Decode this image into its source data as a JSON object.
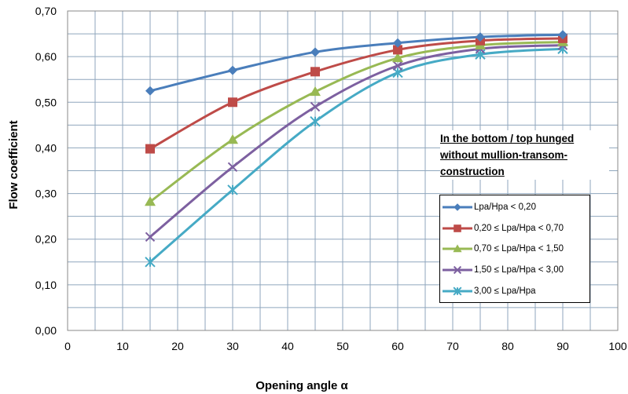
{
  "chart_data": {
    "type": "line",
    "title": "",
    "xlabel": "Opening angle α",
    "ylabel": "Flow coefficient",
    "xlim": [
      0,
      100
    ],
    "ylim": [
      0,
      0.7
    ],
    "x_ticks": [
      "0",
      "10",
      "20",
      "30",
      "40",
      "50",
      "60",
      "70",
      "80",
      "90",
      "100"
    ],
    "y_ticks": [
      "0,00",
      "0,10",
      "0,20",
      "0,30",
      "0,40",
      "0,50",
      "0,60",
      "0,70"
    ],
    "grid": true,
    "legend_position": "lower-right",
    "annotation_lines": [
      "In the bottom / top hunged",
      "without mullion-transom-",
      "construction"
    ],
    "x": [
      15,
      30,
      45,
      60,
      75,
      90
    ],
    "series": [
      {
        "name": "Lpa/Hpa < 0,20",
        "marker": "diamond",
        "color": "#4a7ebb",
        "values": [
          0.525,
          0.57,
          0.61,
          0.63,
          0.643,
          0.648
        ]
      },
      {
        "name": "0,20 ≤ Lpa/Hpa < 0,70",
        "marker": "square",
        "color": "#be4b48",
        "values": [
          0.398,
          0.5,
          0.567,
          0.615,
          0.635,
          0.64
        ]
      },
      {
        "name": "0,70 ≤ Lpa/Hpa < 1,50",
        "marker": "triangle",
        "color": "#98b954",
        "values": [
          0.282,
          0.418,
          0.523,
          0.597,
          0.625,
          0.632
        ]
      },
      {
        "name": "1,50 ≤ Lpa/Hpa < 3,00",
        "marker": "x",
        "color": "#7d60a0",
        "values": [
          0.205,
          0.358,
          0.49,
          0.58,
          0.617,
          0.625
        ]
      },
      {
        "name": "3,00 ≤ Lpa/Hpa",
        "marker": "star",
        "color": "#46aac5",
        "values": [
          0.15,
          0.308,
          0.458,
          0.565,
          0.605,
          0.617
        ]
      }
    ]
  }
}
